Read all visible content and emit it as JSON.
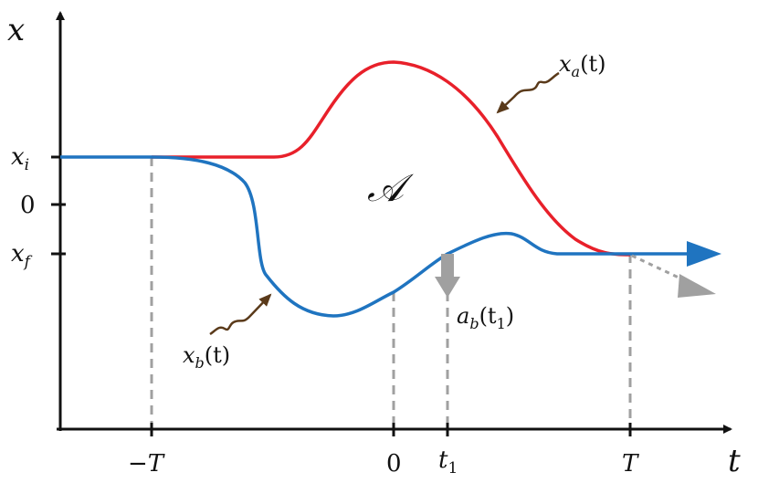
{
  "axes": {
    "x_axis_label": "t",
    "y_axis_label": "x"
  },
  "y_ticks": {
    "xi": {
      "main": "x",
      "sub": "i"
    },
    "zero": "0",
    "xf": {
      "main": "x",
      "sub": "f"
    }
  },
  "x_ticks": {
    "minus_T": "−T",
    "zero": "0",
    "t1": {
      "main": "t",
      "sub": "1"
    },
    "T": "T"
  },
  "labels": {
    "area": "𝒜",
    "xa": {
      "main": "x",
      "sub": "a",
      "arg": "(t)"
    },
    "xb": {
      "main": "x",
      "sub": "b",
      "arg": "(t)"
    },
    "ab": {
      "main": "a",
      "sub": "b",
      "arg": "(t",
      "arg_sub": "1",
      "close": ")"
    }
  },
  "colors": {
    "red_curve": "#e8202a",
    "blue_curve": "#1f74c0",
    "gray": "#a0a0a0",
    "brown_arrow": "#5a3a1a",
    "axis": "#111111"
  }
}
